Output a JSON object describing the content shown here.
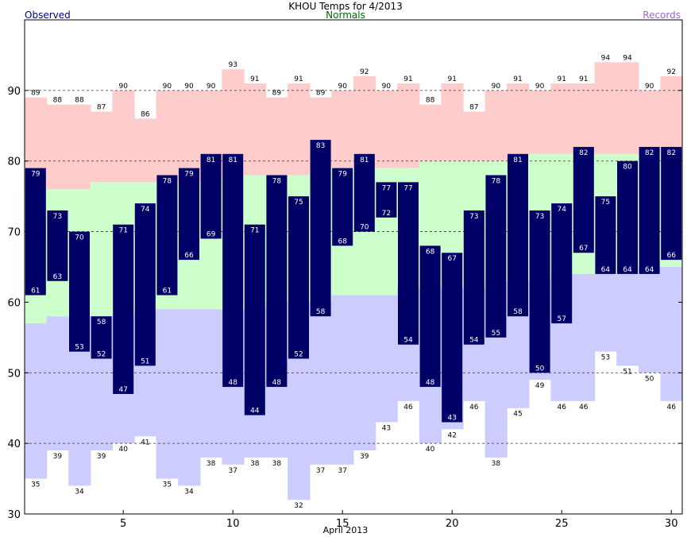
{
  "chart_data": {
    "type": "bar",
    "title": "KHOU Temps for 4/2013",
    "xlabel": "April 2013",
    "legend": {
      "observed": "Observed",
      "normals": "Normals",
      "records": "Records"
    },
    "days": [
      1,
      2,
      3,
      4,
      5,
      6,
      7,
      8,
      9,
      10,
      11,
      12,
      13,
      14,
      15,
      16,
      17,
      18,
      19,
      20,
      21,
      22,
      23,
      24,
      25,
      26,
      27,
      28,
      29,
      30
    ],
    "observed_high": [
      79,
      73,
      70,
      58,
      71,
      74,
      78,
      79,
      81,
      81,
      71,
      78,
      75,
      83,
      79,
      81,
      77,
      77,
      68,
      67,
      73,
      78,
      81,
      73,
      74,
      82,
      75,
      80,
      82,
      82
    ],
    "observed_low": [
      61,
      63,
      53,
      52,
      47,
      51,
      61,
      66,
      69,
      48,
      44,
      48,
      52,
      58,
      68,
      70,
      72,
      54,
      48,
      43,
      54,
      55,
      58,
      50,
      57,
      67,
      64,
      64,
      64,
      66
    ],
    "normal_high": [
      76,
      76,
      76,
      77,
      77,
      77,
      77,
      77,
      77,
      78,
      78,
      78,
      78,
      79,
      79,
      79,
      79,
      79,
      80,
      80,
      80,
      80,
      80,
      81,
      81,
      81,
      81,
      81,
      81,
      82
    ],
    "normal_low": [
      57,
      58,
      58,
      58,
      58,
      59,
      59,
      59,
      59,
      59,
      59,
      60,
      60,
      60,
      61,
      61,
      61,
      62,
      62,
      62,
      62,
      63,
      63,
      63,
      64,
      64,
      64,
      64,
      65,
      65
    ],
    "record_high": [
      89,
      88,
      88,
      87,
      90,
      86,
      90,
      90,
      90,
      93,
      91,
      89,
      91,
      89,
      90,
      92,
      90,
      91,
      88,
      91,
      87,
      90,
      91,
      90,
      91,
      91,
      94,
      94,
      90,
      92
    ],
    "record_low": [
      35,
      39,
      34,
      39,
      40,
      41,
      35,
      34,
      38,
      37,
      38,
      38,
      32,
      37,
      37,
      39,
      43,
      46,
      40,
      42,
      46,
      38,
      45,
      49,
      46,
      46,
      53,
      51,
      50,
      46
    ],
    "x_ticks": [
      5,
      10,
      15,
      20,
      25,
      30
    ],
    "y_ticks": [
      30,
      40,
      50,
      60,
      70,
      80,
      90
    ],
    "ylim": [
      30,
      100
    ],
    "grid": "dashed at 40, 50, 70, 80, 90",
    "colors": {
      "observed": "#000066",
      "normal_band": "#ccffcc",
      "record_high_band": "#ffcccc",
      "record_low_band": "#ccccff",
      "observed_legend": "#000080",
      "normals_legend": "#006600",
      "records_legend": "#9966cc"
    }
  }
}
